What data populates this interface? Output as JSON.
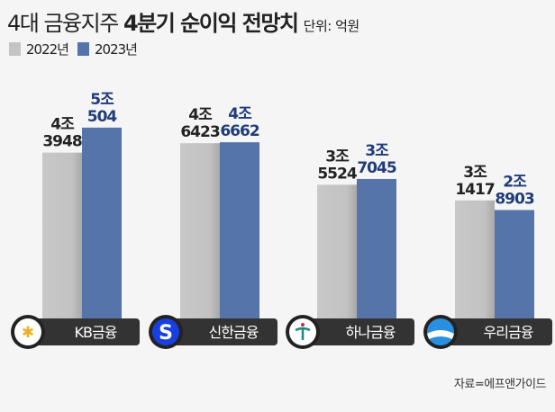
{
  "title": {
    "light": "4대 금융지주",
    "bold": "4분기 순이익 전망치",
    "unit": "단위: 억원"
  },
  "source": "자료=에프앤가이드",
  "colors": {
    "y2022": "#c4c4c4",
    "y2023": "#5574aa",
    "label_2023": "#1f3c7a",
    "pill": "#333333"
  },
  "chart_data": {
    "type": "bar",
    "title": "4대 금융지주 4분기 순이익 전망치",
    "unit": "억원",
    "categories": [
      "KB금융",
      "신한금융",
      "하나금융",
      "우리금융"
    ],
    "logos": [
      "kb-logo-icon",
      "shinhan-logo-icon",
      "hana-logo-icon",
      "woori-logo-icon"
    ],
    "series": [
      {
        "name": "2022년",
        "values": [
          43948,
          46423,
          35524,
          31417
        ],
        "labels": [
          [
            "4조",
            "3948"
          ],
          [
            "4조",
            "6423"
          ],
          [
            "3조",
            "5524"
          ],
          [
            "3조",
            "1417"
          ]
        ]
      },
      {
        "name": "2023년",
        "values": [
          50504,
          46662,
          37045,
          28903
        ],
        "labels": [
          [
            "5조",
            "504"
          ],
          [
            "4조",
            "6662"
          ],
          [
            "3조",
            "7045"
          ],
          [
            "2조",
            "8903"
          ]
        ]
      }
    ],
    "ylim": [
      0,
      55000
    ],
    "legend": "top-left",
    "grid": false
  }
}
